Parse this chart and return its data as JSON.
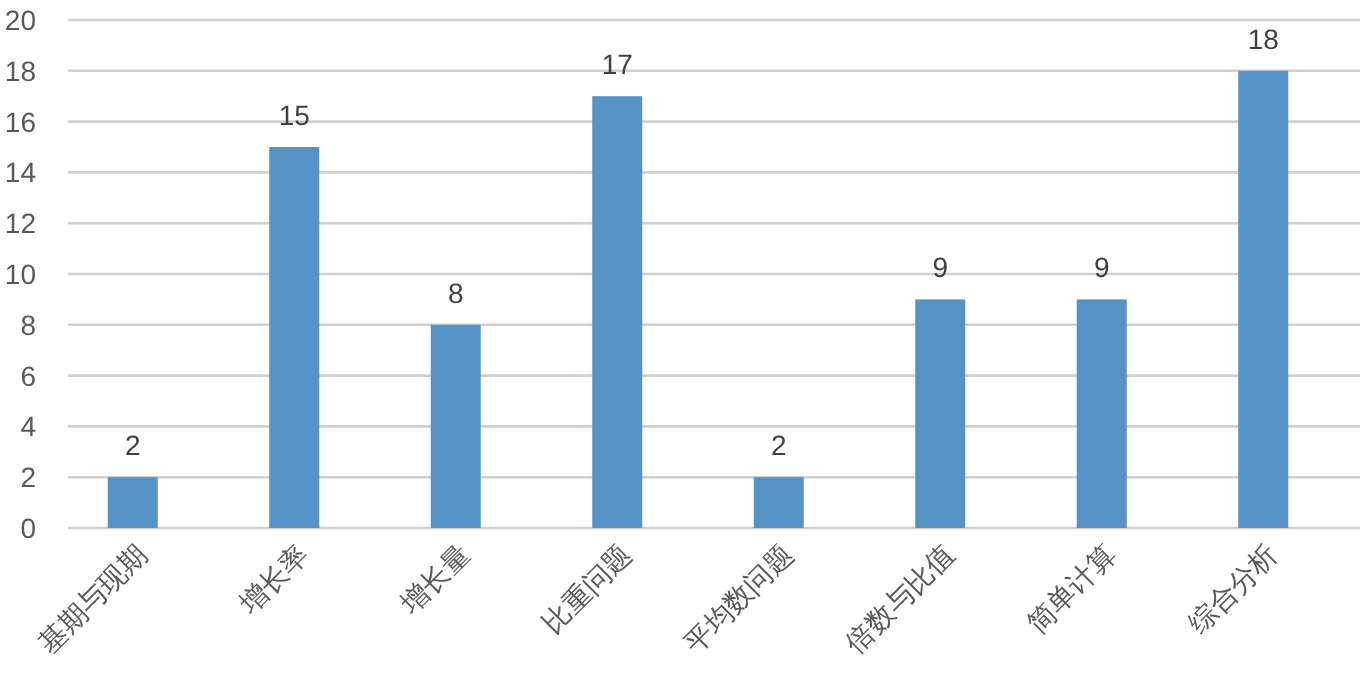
{
  "chart_data": {
    "type": "bar",
    "categories": [
      "基期与现期",
      "增长率",
      "增长量",
      "比重问题",
      "平均数问题",
      "倍数与比值",
      "简单计算",
      "综合分析"
    ],
    "values": [
      2,
      15,
      8,
      17,
      2,
      9,
      9,
      18
    ],
    "color": "#5592c5",
    "ylim": [
      0,
      20
    ],
    "yticks": [
      0,
      2,
      4,
      6,
      8,
      10,
      12,
      14,
      16,
      18,
      20
    ],
    "grid": "y",
    "data_labels": true
  }
}
